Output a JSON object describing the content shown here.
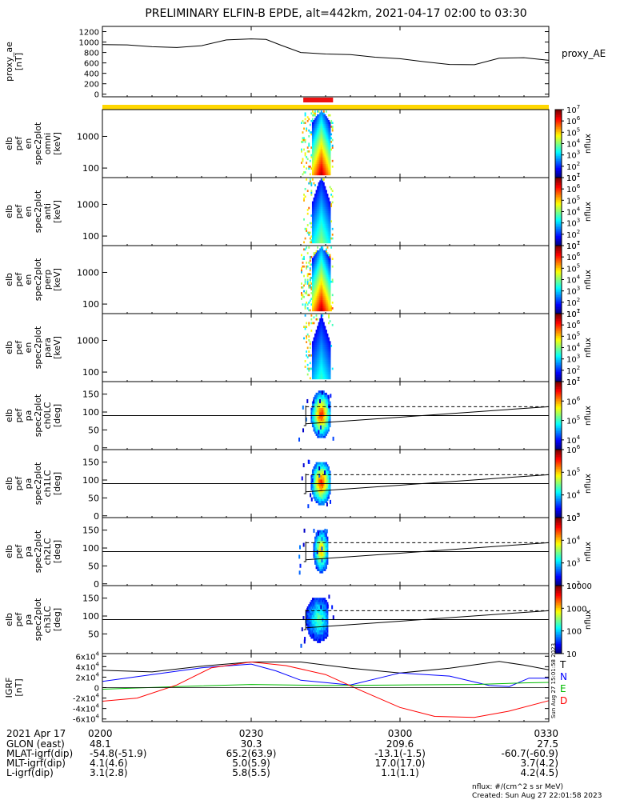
{
  "chart_data": {
    "type": "line",
    "title": "PRELIMINARY ELFIN-B EPDE, alt=442km, 2021-04-17 02:00 to 03:30",
    "x_range_minutes": [
      0,
      90
    ],
    "x_ticks": [
      {
        "minute": 0,
        "label": "0200"
      },
      {
        "minute": 30,
        "label": "0230"
      },
      {
        "minute": 60,
        "label": "0300"
      },
      {
        "minute": 90,
        "label": "0330"
      }
    ],
    "bars": [
      {
        "name": "science-zone-bar",
        "color": "#ffd700",
        "start": 0,
        "end": 90
      },
      {
        "name": "ibo-bar",
        "color": "#ee1111",
        "start": 40.5,
        "end": 46.5
      }
    ],
    "panels": [
      {
        "id": "proxy_ae",
        "kind": "line",
        "ylabel": [
          "proxy_ae",
          "[nT]"
        ],
        "ylim": [
          -50,
          1300
        ],
        "yticks": [
          0,
          200,
          400,
          600,
          800,
          1000,
          1200
        ],
        "ytick_labels": [
          "0",
          "200",
          "400",
          "600",
          "800",
          "1000",
          "1200"
        ],
        "legend": "proxy_AE",
        "series": [
          {
            "name": "proxy_AE",
            "color": "#000000",
            "x": [
              0,
              5,
              10,
              15,
              20,
              25,
              30,
              33,
              36,
              40,
              45,
              50,
              55,
              60,
              65,
              70,
              75,
              80,
              85,
              90
            ],
            "y": [
              950,
              945,
              910,
              895,
              930,
              1040,
              1060,
              1050,
              940,
              800,
              770,
              760,
              710,
              680,
              620,
              570,
              565,
              690,
              700,
              650
            ]
          }
        ]
      },
      {
        "id": "en_omni",
        "kind": "spectrogram_energy",
        "ylabel": [
          "elb",
          "pef",
          "en",
          "spec2plot",
          "omni",
          "[keV]"
        ],
        "ylim_log": [
          50,
          7000
        ],
        "yticks": [
          100,
          1000
        ],
        "ytick_labels": [
          "100",
          "1000"
        ],
        "colorbar": {
          "min_exp": 1,
          "max_exp": 7,
          "label": "nflux"
        },
        "burst": {
          "start": 40,
          "end": 46.5,
          "peak": 44,
          "intensity": 1.0
        }
      },
      {
        "id": "en_anti",
        "kind": "spectrogram_energy",
        "ylabel": [
          "elb",
          "pef",
          "en",
          "spec2plot",
          "anti",
          "[keV]"
        ],
        "ylim_log": [
          50,
          7000
        ],
        "yticks": [
          100,
          1000
        ],
        "ytick_labels": [
          "100",
          "1000"
        ],
        "colorbar": {
          "min_exp": 1,
          "max_exp": 7,
          "label": "nflux"
        },
        "burst": {
          "start": 40.5,
          "end": 46.5,
          "peak": 44,
          "intensity": 0.55
        }
      },
      {
        "id": "en_perp",
        "kind": "spectrogram_energy",
        "ylabel": [
          "elb",
          "pef",
          "en",
          "spec2plot",
          "perp",
          "[keV]"
        ],
        "ylim_log": [
          50,
          7000
        ],
        "yticks": [
          100,
          1000
        ],
        "ytick_labels": [
          "100",
          "1000"
        ],
        "colorbar": {
          "min_exp": 1,
          "max_exp": 7,
          "label": "nflux"
        },
        "burst": {
          "start": 40,
          "end": 46.5,
          "peak": 44,
          "intensity": 1.0
        }
      },
      {
        "id": "en_para",
        "kind": "spectrogram_energy",
        "ylabel": [
          "elb",
          "pef",
          "en",
          "spec2plot",
          "para",
          "[keV]"
        ],
        "ylim_log": [
          50,
          7000
        ],
        "yticks": [
          100,
          1000
        ],
        "ytick_labels": [
          "100",
          "1000"
        ],
        "colorbar": {
          "min_exp": 1,
          "max_exp": 7,
          "label": "nflux"
        },
        "burst": {
          "start": 40.5,
          "end": 46.5,
          "peak": 44,
          "intensity": 0.45
        }
      },
      {
        "id": "pa_ch0",
        "kind": "spectrogram_pa",
        "ylabel": [
          "elb",
          "pef",
          "pa",
          "spec2plot",
          "ch0LC",
          "[deg]"
        ],
        "ylim": [
          -5,
          185
        ],
        "yticks": [
          0,
          50,
          100,
          150
        ],
        "ytick_labels": [
          "0",
          "50",
          "100",
          "150"
        ],
        "colorbar": {
          "min_exp": 3.5,
          "max_exp": 7,
          "labels": [
            "10^4",
            "10^5",
            "10^6",
            "10^7"
          ],
          "label": "nflux"
        },
        "blob": {
          "start": 42,
          "end": 46,
          "center": 44,
          "lo": 28,
          "hi": 155,
          "intensity": 0.85
        },
        "ref_line": 90,
        "lc_dash": [
          115,
          115
        ],
        "lc_solid": [
          67,
          115
        ]
      },
      {
        "id": "pa_ch1",
        "kind": "spectrogram_pa",
        "ylabel": [
          "elb",
          "pef",
          "pa",
          "spec2plot",
          "ch1LC",
          "[deg]"
        ],
        "ylim": [
          -5,
          185
        ],
        "yticks": [
          0,
          50,
          100,
          150
        ],
        "ytick_labels": [
          "0",
          "50",
          "100",
          "150"
        ],
        "colorbar": {
          "min_exp": 3,
          "max_exp": 6,
          "labels": [
            "10^3",
            "10^4",
            "10^5",
            "10^6"
          ],
          "label": "nflux"
        },
        "blob": {
          "start": 42,
          "end": 46,
          "center": 44,
          "lo": 30,
          "hi": 150,
          "intensity": 0.85
        },
        "ref_line": 90,
        "lc_dash": [
          115,
          115
        ],
        "lc_solid": [
          67,
          115
        ]
      },
      {
        "id": "pa_ch2",
        "kind": "spectrogram_pa",
        "ylabel": [
          "elb",
          "pef",
          "pa",
          "spec2plot",
          "ch2LC",
          "[deg]"
        ],
        "ylim": [
          -5,
          185
        ],
        "yticks": [
          0,
          50,
          100,
          150
        ],
        "ytick_labels": [
          "0",
          "50",
          "100",
          "150"
        ],
        "colorbar": {
          "min_exp": 2,
          "max_exp": 5,
          "labels": [
            "10^2",
            "10^3",
            "10^4",
            "10^5"
          ],
          "label": "nflux"
        },
        "blob": {
          "start": 42.5,
          "end": 45.5,
          "center": 44,
          "lo": 30,
          "hi": 150,
          "intensity": 0.7
        },
        "ref_line": 90,
        "lc_dash": [
          115,
          115
        ],
        "lc_solid": [
          67,
          115
        ]
      },
      {
        "id": "pa_ch3",
        "kind": "spectrogram_pa",
        "ylabel": [
          "elb",
          "pef",
          "pa",
          "spec2plot",
          "ch3LC",
          "[deg]"
        ],
        "ylim": [
          -5,
          185
        ],
        "yticks": [
          50,
          100,
          150
        ],
        "ytick_labels": [
          "50",
          "100",
          "150"
        ],
        "colorbar": {
          "min_exp": 1,
          "max_exp": 4,
          "labels": [
            "10",
            "100",
            "1000",
            "10000"
          ],
          "label": "nflux"
        },
        "blob": {
          "start": 40.5,
          "end": 45.5,
          "center": 43.5,
          "lo": 25,
          "hi": 150,
          "intensity": 0.45
        },
        "ref_line": 90,
        "lc_dash": [
          115,
          115
        ],
        "lc_solid": [
          67,
          115
        ]
      },
      {
        "id": "igrf",
        "kind": "line",
        "ylabel": [
          "IGRF",
          "[nT]"
        ],
        "ylim": [
          -65000,
          65000
        ],
        "yticks": [
          -60000,
          -40000,
          -20000,
          0,
          20000,
          40000,
          60000
        ],
        "ytick_labels": [
          "-6x10^4",
          "-4x10^4",
          "-2x10^4",
          "0",
          "2x10^4",
          "4x10^4",
          "6x10^4"
        ],
        "side_note": "Sun Aug 27 15:01:58 2023",
        "series": [
          {
            "name": "T",
            "color": "#000000",
            "x": [
              0,
              10,
              20,
              30,
              40,
              50,
              60,
              70,
              80,
              85,
              90
            ],
            "y": [
              33000,
              30000,
              41000,
              49000,
              49000,
              37000,
              28000,
              37000,
              50000,
              43000,
              34000
            ]
          },
          {
            "name": "N",
            "color": "#0000ff",
            "x": [
              0,
              10,
              20,
              30,
              35,
              40,
              50,
              60,
              70,
              78,
              82,
              86,
              90
            ],
            "y": [
              12000,
              25000,
              38000,
              45000,
              32000,
              14000,
              5000,
              28000,
              22000,
              4000,
              2000,
              18000,
              18000
            ]
          },
          {
            "name": "E",
            "color": "#00bb00",
            "x": [
              0,
              15,
              30,
              45,
              60,
              75,
              85,
              90
            ],
            "y": [
              -3000,
              2000,
              6000,
              4000,
              5000,
              6000,
              9000,
              10000
            ]
          },
          {
            "name": "D",
            "color": "#ff0000",
            "x": [
              0,
              7,
              15,
              22,
              30,
              37,
              45,
              52,
              60,
              67,
              75,
              82,
              90
            ],
            "y": [
              -26000,
              -20000,
              5000,
              38000,
              49000,
              42000,
              25000,
              -5000,
              -38000,
              -55000,
              -57000,
              -45000,
              -25000
            ]
          }
        ]
      }
    ],
    "ephemeris": {
      "date_label": "2021 Apr 17",
      "rows": [
        {
          "label": "GLON (east)",
          "values": [
            "48.1",
            "30.3",
            "209.6",
            "27.5"
          ]
        },
        {
          "label": "MLAT-igrf(dip)",
          "values": [
            "-54.8(-51.9)",
            "65.2(63.9)",
            "-13.1(-1.5)",
            "-60.7(-60.9)"
          ]
        },
        {
          "label": "MLT-igrf(dip)",
          "values": [
            "4.1(4.6)",
            "5.0(5.9)",
            "17.0(17.0)",
            "3.7(4.2)"
          ]
        },
        {
          "label": "L-igrf(dip)",
          "values": [
            "3.1(2.8)",
            "5.8(5.5)",
            "1.1(1.1)",
            "4.2(4.5)"
          ]
        }
      ]
    },
    "footer": {
      "units": "nflux: #/(cm^2 s sr MeV)",
      "created": "Created: Sun Aug 27 22:01:58 2023"
    }
  }
}
